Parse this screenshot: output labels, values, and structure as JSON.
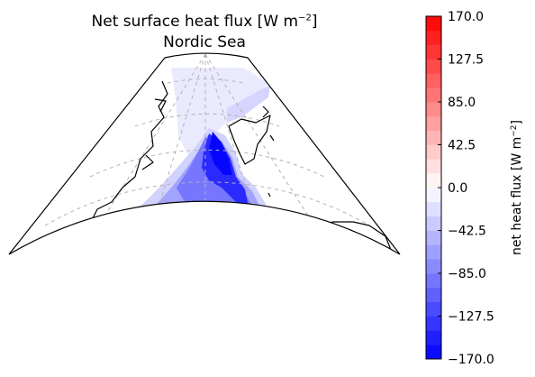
{
  "map": {
    "title_text": "Net surface heat flux [W m",
    "title_exp": "−2",
    "title_close": "]",
    "subtitle": "Nordic Sea"
  },
  "colorbar": {
    "label": "net heat flux [W m",
    "label_exp": "−2",
    "label_close": "]",
    "vmin": -170.0,
    "vmax": 170.0,
    "ticks": [
      "170.0",
      "127.5",
      "85.0",
      "42.5",
      "0.0",
      "−42.5",
      "−85.0",
      "−127.5",
      "−170.0"
    ],
    "tick_values": [
      170.0,
      127.5,
      85.0,
      42.5,
      0.0,
      -42.5,
      -85.0,
      -127.5,
      -170.0
    ],
    "levels": 24,
    "colormap": "bwr",
    "low_color": "#0000ff",
    "mid_color": "#ffffff",
    "high_color": "#ff0000"
  },
  "style": {
    "coast_color": "#000000",
    "grid_color": "#b3b3b3"
  }
}
